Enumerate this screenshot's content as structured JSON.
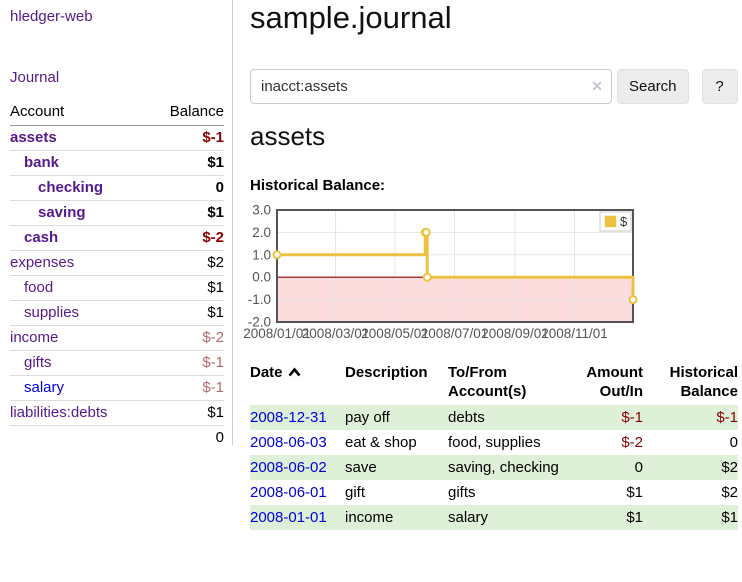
{
  "app": {
    "title": "hledger-web"
  },
  "sidebar": {
    "journal_link": "Journal",
    "accounts_header": {
      "account": "Account",
      "balance": "Balance"
    },
    "accounts": [
      {
        "name": "assets",
        "indent": 0,
        "bold": true,
        "balance": "$-1",
        "balance_style": "neg-strong",
        "link_style": "purple"
      },
      {
        "name": "bank",
        "indent": 1,
        "bold": true,
        "balance": "$1",
        "balance_style": "pos-strong",
        "link_style": "purple"
      },
      {
        "name": "checking",
        "indent": 2,
        "bold": true,
        "balance": "0",
        "balance_style": "pos-strong",
        "link_style": "purple"
      },
      {
        "name": "saving",
        "indent": 2,
        "bold": true,
        "balance": "$1",
        "balance_style": "pos-strong",
        "link_style": "purple"
      },
      {
        "name": "cash",
        "indent": 1,
        "bold": true,
        "balance": "$-2",
        "balance_style": "neg-strong",
        "link_style": "purple"
      },
      {
        "name": "expenses",
        "indent": 0,
        "bold": false,
        "balance": "$2",
        "balance_style": "pos",
        "link_style": "purple"
      },
      {
        "name": "food",
        "indent": 1,
        "bold": false,
        "balance": "$1",
        "balance_style": "pos",
        "link_style": "purple"
      },
      {
        "name": "supplies",
        "indent": 1,
        "bold": false,
        "balance": "$1",
        "balance_style": "pos",
        "link_style": "purple"
      },
      {
        "name": "income",
        "indent": 0,
        "bold": false,
        "balance": "$-2",
        "balance_style": "neg",
        "link_style": "purple"
      },
      {
        "name": "gifts",
        "indent": 1,
        "bold": false,
        "balance": "$-1",
        "balance_style": "neg",
        "link_style": "purple"
      },
      {
        "name": "salary",
        "indent": 1,
        "bold": false,
        "balance": "$-1",
        "balance_style": "neg",
        "link_style": "blue"
      },
      {
        "name": "liabilities:debts",
        "indent": 0,
        "bold": false,
        "balance": "$1",
        "balance_style": "pos",
        "link_style": "purple"
      }
    ],
    "total": "0"
  },
  "header": {
    "title": "sample.journal"
  },
  "search": {
    "value": "inacct:assets",
    "clear_icon": "✕",
    "button_label": "Search",
    "help_label": "?"
  },
  "account_view": {
    "title": "assets",
    "chart_label": "Historical Balance:"
  },
  "chart_data": {
    "type": "line",
    "title": "Historical Balance:",
    "series": [
      {
        "name": "$",
        "color": "#edc240",
        "step": true,
        "points": [
          {
            "date": "2008/01/01",
            "value": 1
          },
          {
            "date": "2008/06/01",
            "value": 2
          },
          {
            "date": "2008/06/02",
            "value": 2
          },
          {
            "date": "2008/06/03",
            "value": 0
          },
          {
            "date": "2008/12/31",
            "value": -1
          }
        ]
      }
    ],
    "x_ticks": [
      "2008/01/01",
      "2008/03/01",
      "2008/05/01",
      "2008/07/01",
      "2008/09/01",
      "2008/11/01"
    ],
    "y_ticks": [
      3.0,
      2.0,
      1.0,
      0.0,
      -1.0,
      -2.0
    ],
    "xlim": [
      "2008/01/01",
      "2008/12/31"
    ],
    "ylim": [
      -2,
      3
    ],
    "grid": true,
    "legend": {
      "label": "$",
      "position": "top-right"
    },
    "negative_region_color": "#fcdcdc",
    "zero_line_color": "#8b0000",
    "grid_color": "#e6e6e6",
    "frame_color": "#545454",
    "tick_label_color": "#545454"
  },
  "register": {
    "columns": [
      "Date",
      "Description",
      "To/From Account(s)",
      "Amount Out/In",
      "Historical Balance"
    ],
    "rows": [
      {
        "date": "2008-12-31",
        "description": "pay off",
        "accounts": "debts",
        "amount": "$-1",
        "amount_negative": true,
        "balance": "$-1",
        "balance_negative": true,
        "highlight": true
      },
      {
        "date": "2008-06-03",
        "description": "eat & shop",
        "accounts": "food, supplies",
        "amount": "$-2",
        "amount_negative": true,
        "balance": "0",
        "balance_negative": false,
        "highlight": false
      },
      {
        "date": "2008-06-02",
        "description": "save",
        "accounts": "saving, checking",
        "amount": "0",
        "amount_negative": false,
        "balance": "$2",
        "balance_negative": false,
        "highlight": true
      },
      {
        "date": "2008-06-01",
        "description": "gift",
        "accounts": "gifts",
        "amount": "$1",
        "amount_negative": false,
        "balance": "$2",
        "balance_negative": false,
        "highlight": false
      },
      {
        "date": "2008-01-01",
        "description": "income",
        "accounts": "salary",
        "amount": "$1",
        "amount_negative": false,
        "balance": "$1",
        "balance_negative": false,
        "highlight": true
      }
    ]
  }
}
